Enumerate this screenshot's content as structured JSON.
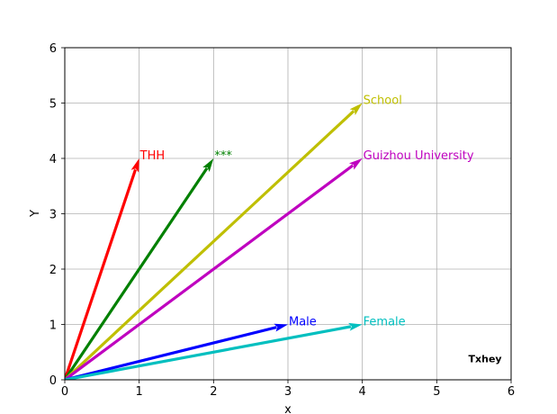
{
  "chart_data": {
    "type": "quiver",
    "title": "",
    "xlabel": "x",
    "ylabel": "Y",
    "xlim": [
      0,
      6
    ],
    "ylim": [
      0,
      6
    ],
    "xticks": [
      "0",
      "1",
      "2",
      "3",
      "4",
      "5",
      "6"
    ],
    "yticks": [
      "0",
      "1",
      "2",
      "3",
      "4",
      "5",
      "6"
    ],
    "grid": true,
    "vectors": [
      {
        "label": "THH",
        "x0": 0,
        "y0": 0,
        "x1": 1,
        "y1": 4,
        "color": "#ff0000"
      },
      {
        "label": "***",
        "x0": 0,
        "y0": 0,
        "x1": 2,
        "y1": 4,
        "color": "#008000"
      },
      {
        "label": "School",
        "x0": 0,
        "y0": 0,
        "x1": 4,
        "y1": 5,
        "color": "#bfbf00"
      },
      {
        "label": "Guizhou University",
        "x0": 0,
        "y0": 0,
        "x1": 4,
        "y1": 4,
        "color": "#bf00bf"
      },
      {
        "label": "Male",
        "x0": 0,
        "y0": 0,
        "x1": 3,
        "y1": 1,
        "color": "#0000ff"
      },
      {
        "label": "Female",
        "x0": 0,
        "y0": 0,
        "x1": 4,
        "y1": 1,
        "color": "#00bfbf"
      }
    ],
    "watermark": {
      "text": "Txhey",
      "x": 5.65,
      "y": 0.38
    }
  }
}
